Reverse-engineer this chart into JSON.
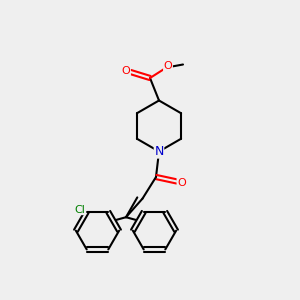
{
  "bg_color": "#efefef",
  "bond_color": "#000000",
  "bond_width": 1.5,
  "font_size": 8,
  "atom_colors": {
    "O": "#ff0000",
    "N": "#0000cc",
    "Cl": "#008000",
    "C": "#000000"
  },
  "figsize": [
    3.0,
    3.0
  ],
  "dpi": 100
}
